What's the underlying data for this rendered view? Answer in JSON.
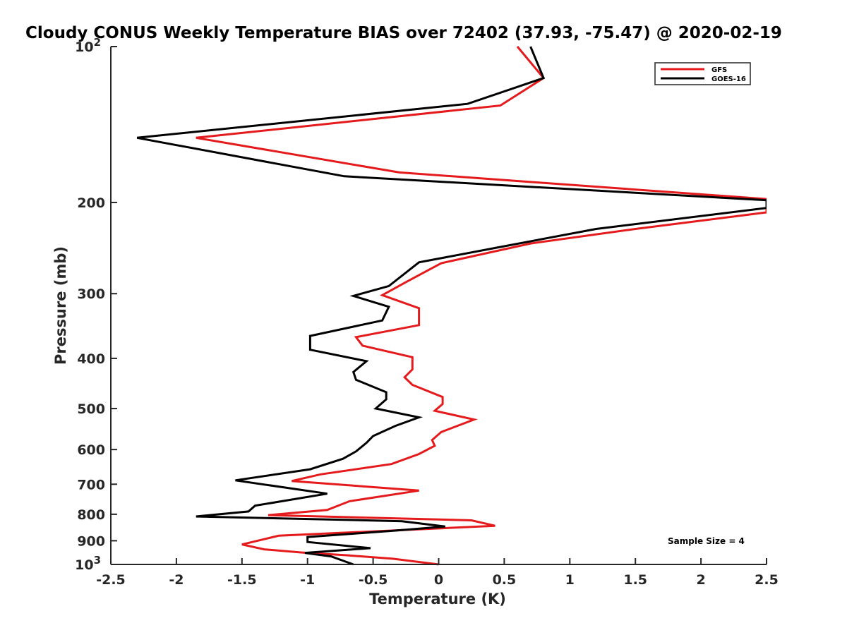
{
  "chart_data": {
    "type": "line",
    "title": "Cloudy CONUS Weekly Temperature BIAS over 72402 (37.93, -75.47) @ 2020-02-19",
    "xlabel": "Temperature (K)",
    "ylabel": "Pressure (mb)",
    "xlim": [
      -2.5,
      2.5
    ],
    "ylim": [
      100,
      1000
    ],
    "y_scale": "log",
    "y_reversed": true,
    "grid": false,
    "legend_position": "top-right",
    "annotation": "Sample Size = 4",
    "xticks": [
      {
        "v": -2.5,
        "label": "-2.5"
      },
      {
        "v": -2,
        "label": "-2"
      },
      {
        "v": -1.5,
        "label": "-1.5"
      },
      {
        "v": -1,
        "label": "-1"
      },
      {
        "v": -0.5,
        "label": "-0.5"
      },
      {
        "v": 0,
        "label": "0"
      },
      {
        "v": 0.5,
        "label": "0.5"
      },
      {
        "v": 1,
        "label": "1"
      },
      {
        "v": 1.5,
        "label": "1.5"
      },
      {
        "v": 2,
        "label": "2"
      },
      {
        "v": 2.5,
        "label": "2.5"
      }
    ],
    "yticks": [
      {
        "v": 100,
        "label": "10",
        "sup": "2"
      },
      {
        "v": 200,
        "label": "200"
      },
      {
        "v": 300,
        "label": "300"
      },
      {
        "v": 400,
        "label": "400"
      },
      {
        "v": 500,
        "label": "500"
      },
      {
        "v": 600,
        "label": "600"
      },
      {
        "v": 700,
        "label": "700"
      },
      {
        "v": 800,
        "label": "800"
      },
      {
        "v": 900,
        "label": "900"
      },
      {
        "v": 1000,
        "label": "10",
        "sup": "3"
      }
    ],
    "series": [
      {
        "name": "GFS",
        "color": "#e41a1c",
        "points": [
          [
            0.6,
            100
          ],
          [
            0.8,
            115
          ],
          [
            0.47,
            130
          ],
          [
            -1.85,
            150
          ],
          [
            -0.3,
            175
          ],
          [
            2.5,
            197
          ],
          [
            2.5,
            209
          ],
          [
            1.5,
            225
          ],
          [
            0.7,
            240
          ],
          [
            0.02,
            262
          ],
          [
            -0.25,
            285
          ],
          [
            -0.43,
            302
          ],
          [
            -0.15,
            320
          ],
          [
            -0.15,
            345
          ],
          [
            -0.63,
            364
          ],
          [
            -0.58,
            378
          ],
          [
            -0.2,
            398
          ],
          [
            -0.2,
            420
          ],
          [
            -0.26,
            435
          ],
          [
            -0.2,
            450
          ],
          [
            0.03,
            475
          ],
          [
            0.03,
            490
          ],
          [
            -0.03,
            505
          ],
          [
            0.27,
            525
          ],
          [
            0.02,
            555
          ],
          [
            -0.05,
            575
          ],
          [
            -0.03,
            590
          ],
          [
            -0.15,
            612
          ],
          [
            -0.36,
            640
          ],
          [
            -0.9,
            670
          ],
          [
            -1.12,
            690
          ],
          [
            -0.15,
            720
          ],
          [
            -0.68,
            755
          ],
          [
            -0.85,
            785
          ],
          [
            -1.3,
            803
          ],
          [
            0.25,
            822
          ],
          [
            0.43,
            842
          ],
          [
            -1.22,
            880
          ],
          [
            -1.5,
            915
          ],
          [
            -1.33,
            935
          ],
          [
            -1.05,
            948
          ],
          [
            -0.7,
            960
          ],
          [
            -0.35,
            975
          ],
          [
            0.0,
            1000
          ]
        ]
      },
      {
        "name": "GOES-16",
        "color": "#000000",
        "points": [
          [
            0.7,
            100
          ],
          [
            0.8,
            115
          ],
          [
            0.22,
            129
          ],
          [
            -2.3,
            150
          ],
          [
            -0.72,
            178
          ],
          [
            2.5,
            198
          ],
          [
            2.5,
            205
          ],
          [
            1.2,
            225
          ],
          [
            0.5,
            243
          ],
          [
            -0.15,
            261
          ],
          [
            -0.38,
            290
          ],
          [
            -0.65,
            303
          ],
          [
            -0.38,
            318
          ],
          [
            -0.43,
            338
          ],
          [
            -0.98,
            362
          ],
          [
            -0.98,
            385
          ],
          [
            -0.55,
            405
          ],
          [
            -0.65,
            425
          ],
          [
            -0.63,
            440
          ],
          [
            -0.4,
            465
          ],
          [
            -0.4,
            480
          ],
          [
            -0.48,
            500
          ],
          [
            -0.15,
            520
          ],
          [
            -0.33,
            540
          ],
          [
            -0.5,
            565
          ],
          [
            -0.55,
            582
          ],
          [
            -0.63,
            605
          ],
          [
            -0.73,
            625
          ],
          [
            -0.98,
            655
          ],
          [
            -1.55,
            688
          ],
          [
            -0.85,
            730
          ],
          [
            -1.4,
            770
          ],
          [
            -1.45,
            790
          ],
          [
            -1.85,
            808
          ],
          [
            -0.28,
            825
          ],
          [
            0.05,
            845
          ],
          [
            -0.32,
            860
          ],
          [
            -1.0,
            885
          ],
          [
            -1.0,
            905
          ],
          [
            -0.52,
            930
          ],
          [
            -1.02,
            950
          ],
          [
            -0.82,
            965
          ],
          [
            -0.65,
            1000
          ]
        ]
      }
    ]
  }
}
